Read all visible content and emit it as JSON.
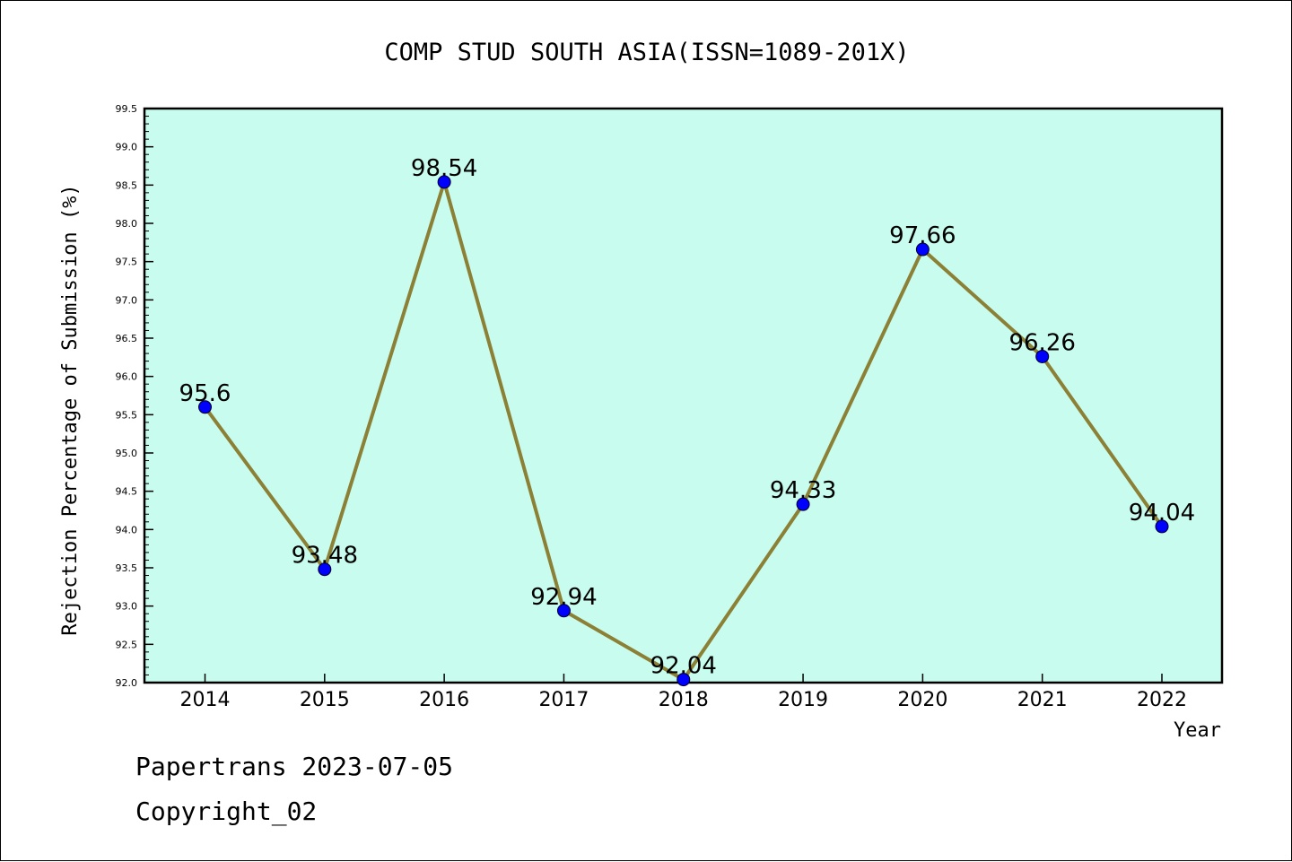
{
  "chart_data": {
    "type": "line",
    "title": "COMP STUD SOUTH ASIA(ISSN=1089-201X)",
    "xlabel": "Year",
    "ylabel": "Rejection Percentage of Submission (%)",
    "categories": [
      "2014",
      "2015",
      "2016",
      "2017",
      "2018",
      "2019",
      "2020",
      "2021",
      "2022"
    ],
    "values": [
      95.6,
      93.48,
      98.54,
      92.94,
      92.04,
      94.33,
      97.66,
      96.26,
      94.04
    ],
    "data_labels": [
      "95.6",
      "93.48",
      "98.54",
      "92.94",
      "92.04",
      "94.33",
      "97.66",
      "96.26",
      "94.04"
    ],
    "ylim": [
      92.0,
      99.5
    ],
    "yticks": [
      "92.0",
      "92.5",
      "93.0",
      "93.5",
      "94.0",
      "94.5",
      "95.0",
      "95.5",
      "96.0",
      "96.5",
      "97.0",
      "97.5",
      "98.0",
      "98.5",
      "99.0",
      "99.5"
    ],
    "grid": false,
    "legend": "none",
    "colors": {
      "plot_background": "#c8fcee",
      "line": "#8b8035",
      "marker": "#0000ff"
    }
  },
  "footer": {
    "line1": "Papertrans 2023-07-05",
    "line2": "Copyright_02"
  }
}
